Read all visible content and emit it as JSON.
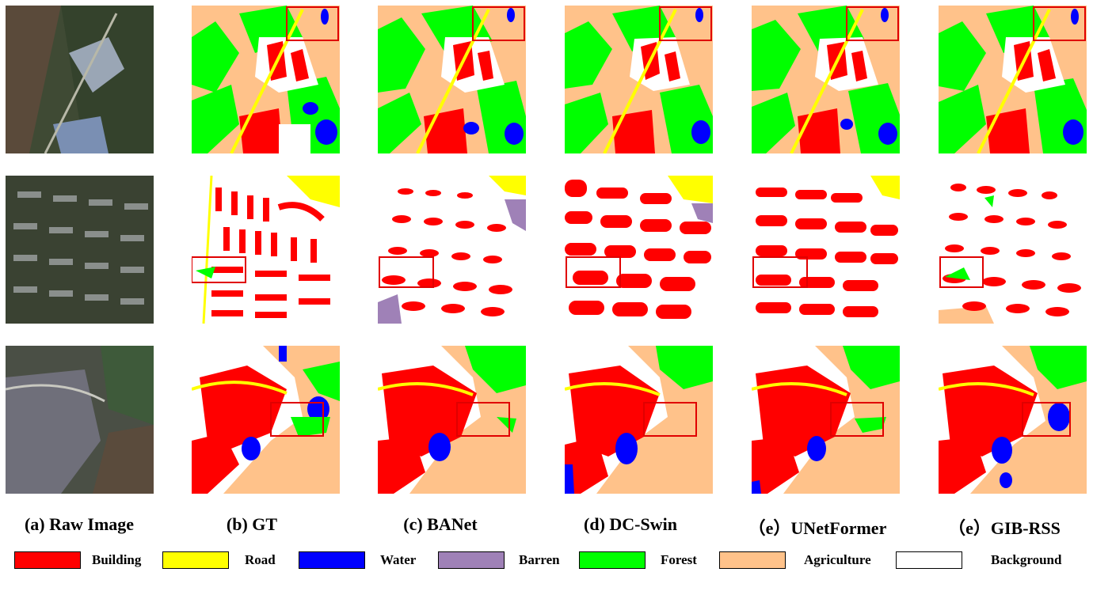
{
  "colors": {
    "building": "#ff0000",
    "road": "#ffff00",
    "water": "#0000ff",
    "barren": "#9f81b7",
    "forest": "#00ff00",
    "agriculture": "#ffc28a",
    "background": "#ffffff",
    "highlight_box": "#e00000"
  },
  "captions": [
    "(a) Raw Image",
    "(b) GT",
    "(c) BANet",
    "(d) DC-Swin",
    "（e）UNetFormer",
    "（e）GIB-RSS"
  ],
  "legend": [
    {
      "label": "Building",
      "color": "#ff0000"
    },
    {
      "label": "Road",
      "color": "#ffff00"
    },
    {
      "label": "Water",
      "color": "#0000ff"
    },
    {
      "label": "Barren",
      "color": "#9f81b7"
    },
    {
      "label": "Forest",
      "color": "#00ff00"
    },
    {
      "label": "Agriculture",
      "color": "#ffc28a"
    },
    {
      "label": "Background",
      "color": "#ffffff"
    }
  ]
}
